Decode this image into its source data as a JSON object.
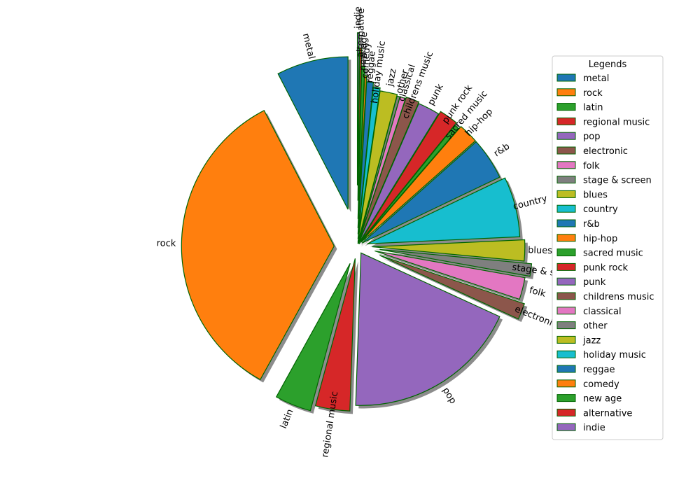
{
  "chart_data": {
    "type": "pie",
    "title": "",
    "start_angle_deg": 90,
    "direction": "counterclockwise",
    "edge_color": "#006400",
    "shadow": true,
    "legend": {
      "title": "Legends",
      "placement": "right"
    },
    "slices": [
      {
        "label": "metal",
        "value": 7.5,
        "color": "#1f77b4"
      },
      {
        "label": "rock",
        "value": 34.0,
        "color": "#ff7f0e"
      },
      {
        "label": "latin",
        "value": 3.8,
        "color": "#2ca02c"
      },
      {
        "label": "regional music",
        "value": 3.6,
        "color": "#d62728"
      },
      {
        "label": "pop",
        "value": 18.5,
        "color": "#9467bd"
      },
      {
        "label": "electronic",
        "value": 1.7,
        "color": "#8c564b"
      },
      {
        "label": "folk",
        "value": 2.3,
        "color": "#e377c2"
      },
      {
        "label": "stage & screen",
        "value": 1.3,
        "color": "#7f7f7f"
      },
      {
        "label": "blues",
        "value": 2.2,
        "color": "#bcbd22"
      },
      {
        "label": "country",
        "value": 6.3,
        "color": "#17becf"
      },
      {
        "label": "r&b",
        "value": 4.4,
        "color": "#1f77b4"
      },
      {
        "label": "hip-hop",
        "value": 2.1,
        "color": "#ff7f0e"
      },
      {
        "label": "sacred music",
        "value": 0.5,
        "color": "#2ca02c"
      },
      {
        "label": "punk rock",
        "value": 2.0,
        "color": "#d62728"
      },
      {
        "label": "punk",
        "value": 2.3,
        "color": "#9467bd"
      },
      {
        "label": "childrens music",
        "value": 1.4,
        "color": "#8c564b"
      },
      {
        "label": "classical",
        "value": 0.6,
        "color": "#e377c2"
      },
      {
        "label": "other",
        "value": 0.3,
        "color": "#7f7f7f"
      },
      {
        "label": "jazz",
        "value": 1.8,
        "color": "#bcbd22"
      },
      {
        "label": "holiday music",
        "value": 0.7,
        "color": "#17becf"
      },
      {
        "label": "reggae",
        "value": 0.7,
        "color": "#1f77b4"
      },
      {
        "label": "comedy",
        "value": 0.2,
        "color": "#ff7f0e"
      },
      {
        "label": "new age",
        "value": 0.3,
        "color": "#2ca02c"
      },
      {
        "label": "alternative",
        "value": 0.2,
        "color": "#d62728"
      },
      {
        "label": "indie",
        "value": 0.2,
        "color": "#9467bd"
      }
    ]
  }
}
